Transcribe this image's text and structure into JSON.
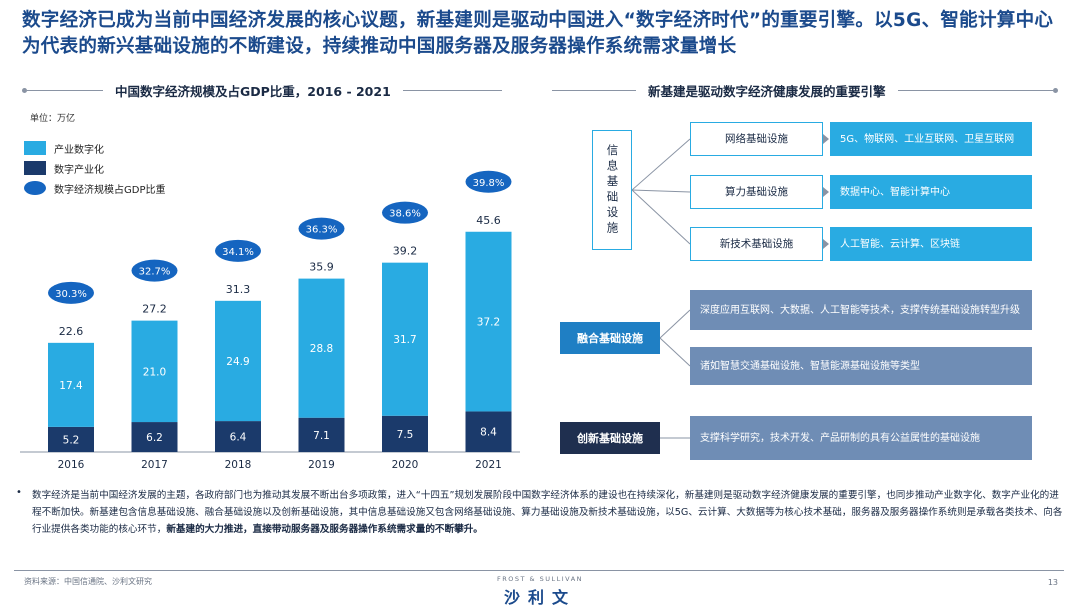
{
  "headline": "数字经济已成为当前中国经济发展的核心议题，新基建则是驱动中国进入“数字经济时代”的重要引擎。以5G、智能计算中心为代表的新兴基础设施的不断建设，持续推动中国服务器及服务器操作系统需求量增长",
  "left_title": "中国数字经济规模及占GDP比重，2016 - 2021",
  "unit": "单位：万亿",
  "legend": {
    "light": "产业数字化",
    "dark": "数字产业化",
    "oval": "数字经济规模占GDP比重"
  },
  "chart_data": {
    "type": "bar",
    "stacked": true,
    "categories": [
      "2016",
      "2017",
      "2018",
      "2019",
      "2020",
      "2021"
    ],
    "series": [
      {
        "name": "数字产业化",
        "values": [
          5.2,
          6.2,
          6.4,
          7.1,
          7.5,
          8.4
        ],
        "color": "#1b3a6b"
      },
      {
        "name": "产业数字化",
        "values": [
          17.4,
          21.0,
          24.9,
          28.8,
          31.7,
          37.2
        ],
        "color": "#29abe2"
      }
    ],
    "value_labels": [
      [
        "5.2",
        "6.2",
        "6.4",
        "7.1",
        "7.5",
        "8.4"
      ],
      [
        "17.4",
        "21.0",
        "24.9",
        "28.8",
        "31.7",
        "37.2"
      ]
    ],
    "totals": [
      "22.6",
      "27.2",
      "31.3",
      "35.9",
      "39.2",
      "45.6"
    ],
    "gdp_share": [
      "30.3%",
      "32.7%",
      "34.1%",
      "36.3%",
      "38.6%",
      "39.8%"
    ],
    "gdp_share_color": "#1565c0",
    "ylim": [
      0,
      60
    ],
    "grid": false
  },
  "right_title": "新基建是驱动数字经济健康发展的重要引擎",
  "infra": {
    "info_label": "信息基础设施",
    "info_items": [
      {
        "name": "网络基础设施",
        "desc": "5G、物联网、工业互联网、卫星互联网"
      },
      {
        "name": "算力基础设施",
        "desc": "数据中心、智能计算中心"
      },
      {
        "name": "新技术基础设施",
        "desc": "人工智能、云计算、区块链"
      }
    ],
    "fusion_label": "融合基础设施",
    "fusion_items": [
      "深度应用互联网、大数据、人工智能等技术，支撑传统基础设施转型升级",
      "诸如智慧交通基础设施、智慧能源基础设施等类型"
    ],
    "innovation_label": "创新基础设施",
    "innovation_items": [
      "支撑科学研究，技术开发、产品研制的具有公益属性的基础设施"
    ]
  },
  "bullet": {
    "marker": "•",
    "text": "数字经济是当前中国经济发展的主题，各政府部门也为推动其发展不断出台多项政策，进入“十四五”规划发展阶段中国数字经济体系的建设也在持续深化，新基建则是驱动数字经济健康发展的重要引擎，也同步推动产业数字化、数字产业化的进程不断加快。新基建包含信息基础设施、融合基础设施以及创新基础设施，其中信息基础设施又包含网络基础设施、算力基础设施及新技术基础设施，以5G、云计算、大数据等为核心技术基础，服务器及服务器操作系统则是承载各类技术、向各行业提供各类功能的核心环节，",
    "bold": "新基建的大力推进，直接带动服务器及服务器操作系统需求量的不断攀升。"
  },
  "footer": {
    "source": "资料来源：中国信通院、沙利文研究",
    "logo_en": "FROST & SULLIVAN",
    "logo_cn": "沙利文",
    "page": "13"
  }
}
